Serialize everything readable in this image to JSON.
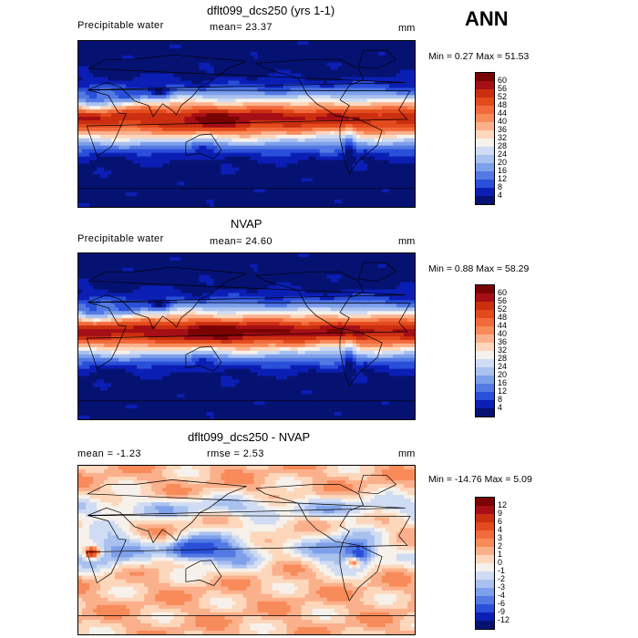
{
  "season": "ANN",
  "panels": [
    {
      "title": "dflt099_dcs250 (yrs 1-1)",
      "variable": "Precipitable water",
      "stat_text": "mean=  23.37",
      "units": "mm",
      "minmax": "Min =    0.27  Max =   51.53",
      "palette": "pw"
    },
    {
      "title": "NVAP",
      "variable": "Precipitable water",
      "stat_text": "mean=  24.60",
      "units": "mm",
      "minmax": "Min =    0.88  Max =   58.29",
      "palette": "pw"
    },
    {
      "title": "dflt099_dcs250 - NVAP",
      "mean_text": "mean =   -1.23",
      "rmse_text": "rmse =    2.53",
      "units": "mm",
      "minmax": "Min = -14.76  Max =    5.09",
      "palette": "diff"
    }
  ],
  "colorbars": {
    "pw": {
      "labels": [
        "60",
        "56",
        "52",
        "48",
        "44",
        "40",
        "36",
        "32",
        "28",
        "24",
        "20",
        "16",
        "12",
        "8",
        "4"
      ],
      "colors": [
        "#7a0403",
        "#a50f15",
        "#cb2f10",
        "#e34a1c",
        "#f26a3c",
        "#f88b5a",
        "#fbb08c",
        "#fdd7bb",
        "#f6f1ea",
        "#cfdcf3",
        "#a9c1ef",
        "#7ea0ea",
        "#5379e4",
        "#2a4fd9",
        "#0b1fb5",
        "#061272"
      ]
    },
    "diff": {
      "labels": [
        "12",
        "9",
        "6",
        "4",
        "3",
        "2",
        "1",
        "0",
        "-1",
        "-2",
        "-3",
        "-4",
        "-6",
        "-9",
        "-12"
      ],
      "colors": [
        "#7a0403",
        "#a50f15",
        "#cb2f10",
        "#e34a1c",
        "#f26a3c",
        "#f88b5a",
        "#fbb08c",
        "#fdd7bb",
        "#f6f1ea",
        "#cfdcf3",
        "#a9c1ef",
        "#7ea0ea",
        "#5379e4",
        "#2a4fd9",
        "#0b1fb5",
        "#061272"
      ]
    }
  },
  "chart_data": [
    {
      "type": "heatmap",
      "title": "dflt099_dcs250 (yrs 1-1)",
      "variable": "Precipitable water",
      "units": "mm",
      "mean": 23.37,
      "min": 0.27,
      "max": 51.53,
      "contour_levels": [
        4,
        8,
        12,
        16,
        20,
        24,
        28,
        32,
        36,
        40,
        44,
        48,
        52,
        56,
        60
      ]
    },
    {
      "type": "heatmap",
      "title": "NVAP",
      "variable": "Precipitable water",
      "units": "mm",
      "mean": 24.6,
      "min": 0.88,
      "max": 58.29,
      "contour_levels": [
        4,
        8,
        12,
        16,
        20,
        24,
        28,
        32,
        36,
        40,
        44,
        48,
        52,
        56,
        60
      ]
    },
    {
      "type": "heatmap",
      "title": "dflt099_dcs250 - NVAP",
      "units": "mm",
      "mean": -1.23,
      "rmse": 2.53,
      "min": -14.76,
      "max": 5.09,
      "contour_levels": [
        -12,
        -9,
        -6,
        -4,
        -3,
        -2,
        -1,
        0,
        1,
        2,
        3,
        4,
        6,
        9,
        12
      ]
    }
  ]
}
